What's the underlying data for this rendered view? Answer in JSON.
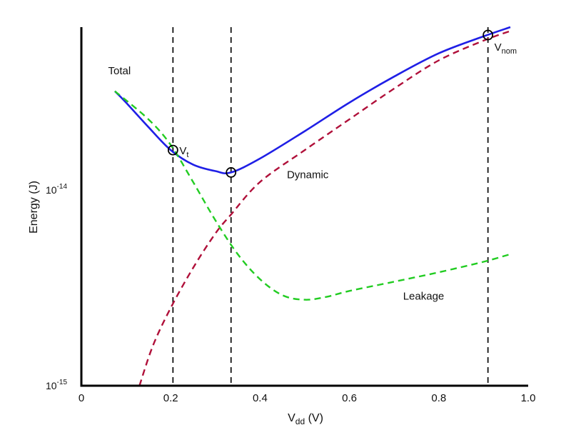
{
  "chart_data": {
    "type": "line",
    "title": "",
    "xlabel": {
      "main": "V",
      "sub": "dd",
      "unit": " (V)"
    },
    "ylabel": "Energy (J)",
    "xlim": [
      0,
      1.0
    ],
    "ylog": true,
    "ylim": [
      1e-15,
      6.8e-14
    ],
    "xticks": [
      "0",
      "0.2",
      "0.4",
      "0.6",
      "0.8",
      "1.0"
    ],
    "xtick_values": [
      0,
      0.2,
      0.4,
      0.6,
      0.8,
      1.0
    ],
    "yticks": [
      {
        "value": 1e-14,
        "base": "10",
        "exp": "-14"
      },
      {
        "value": 1e-15,
        "base": "10",
        "exp": "-15"
      }
    ],
    "grid": false,
    "series": [
      {
        "name": "Total",
        "color": "#1f1fe6",
        "style": "solid",
        "x": [
          0.075,
          0.1,
          0.15,
          0.2,
          0.25,
          0.3,
          0.335,
          0.4,
          0.5,
          0.6,
          0.7,
          0.8,
          0.9,
          0.96
        ],
        "y": [
          3.2e-14,
          2.8e-14,
          2.1e-14,
          1.6e-14,
          1.35e-14,
          1.25e-14,
          1.23e-14,
          1.45e-14,
          2e-14,
          2.8e-14,
          3.8e-14,
          5e-14,
          6.1e-14,
          6.8e-14
        ]
      },
      {
        "name": "Dynamic",
        "color": "#b0103a",
        "style": "dashed",
        "x": [
          0.13,
          0.16,
          0.2,
          0.25,
          0.3,
          0.335,
          0.4,
          0.5,
          0.6,
          0.7,
          0.8,
          0.9,
          0.96
        ],
        "y": [
          1e-15,
          1.6e-15,
          2.5e-15,
          4e-15,
          6e-15,
          7.5e-15,
          1.1e-14,
          1.6e-14,
          2.3e-14,
          3.3e-14,
          4.6e-14,
          5.8e-14,
          6.5e-14
        ]
      },
      {
        "name": "Leakage",
        "color": "#22cc22",
        "style": "dashed",
        "x": [
          0.075,
          0.15,
          0.2,
          0.25,
          0.3,
          0.35,
          0.4,
          0.45,
          0.5,
          0.55,
          0.6,
          0.7,
          0.8,
          0.9,
          0.96
        ],
        "y": [
          3.2e-14,
          2.3e-14,
          1.7e-14,
          1.1e-14,
          7e-15,
          4.7e-15,
          3.5e-15,
          2.9e-15,
          2.75e-15,
          2.85e-15,
          3.05e-15,
          3.4e-15,
          3.8e-15,
          4.3e-15,
          4.7e-15
        ]
      }
    ],
    "vlines": [
      0.205,
      0.335,
      0.91
    ],
    "markers": [
      {
        "x": 0.205,
        "y": 1.6e-14,
        "label": "V",
        "sub": "t"
      },
      {
        "x": 0.335,
        "y": 1.23e-14,
        "label": "",
        "sub": ""
      },
      {
        "x": 0.91,
        "y": 6.2e-14,
        "label": "V",
        "sub": "nom"
      }
    ],
    "annotations": [
      {
        "text": "Total",
        "x": 0.06,
        "y": 3.9e-14
      },
      {
        "text": "Dynamic",
        "x": 0.46,
        "y": 1.15e-14
      },
      {
        "text": "Leakage",
        "x": 0.72,
        "y": 2.75e-15
      }
    ]
  }
}
